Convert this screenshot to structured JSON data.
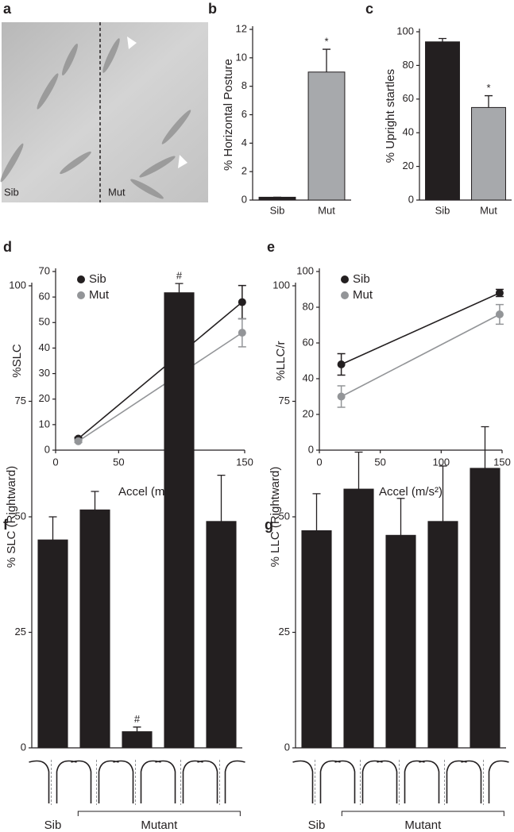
{
  "figure_a": {
    "panel": "a",
    "labels": [
      "Sib",
      "Mut"
    ]
  },
  "chart_data": [
    {
      "panel": "b",
      "type": "bar",
      "y_label": "% Horizontal Posture",
      "categories": [
        "Sib",
        "Mut"
      ],
      "values": [
        0.2,
        9.0
      ],
      "errors": [
        0,
        1.6
      ],
      "colors": [
        "#231f20",
        "#a7a9ac"
      ],
      "annotations": [
        {
          "index": 1,
          "text": "*"
        }
      ],
      "ylim": [
        0,
        12
      ],
      "yticks": [
        0,
        2,
        4,
        6,
        8,
        10,
        12
      ]
    },
    {
      "panel": "c",
      "type": "bar",
      "y_label": "% Upright startles",
      "categories": [
        "Sib",
        "Mut"
      ],
      "values": [
        94,
        55
      ],
      "errors": [
        2,
        7
      ],
      "colors": [
        "#231f20",
        "#a7a9ac"
      ],
      "annotations": [
        {
          "index": 1,
          "text": "*"
        }
      ],
      "ylim": [
        0,
        100
      ],
      "yticks": [
        0,
        20,
        40,
        60,
        80,
        100
      ]
    },
    {
      "panel": "d",
      "type": "line",
      "y_label": "%SLC",
      "x_label": "Accel (m/s²)",
      "x": [
        18,
        148
      ],
      "series": [
        {
          "name": "Sib",
          "color": "#231f20",
          "values": [
            4.5,
            58
          ],
          "errors": [
            0.5,
            6.5
          ]
        },
        {
          "name": "Mut",
          "color": "#939598",
          "values": [
            3.5,
            46
          ],
          "errors": [
            0.5,
            5.5
          ]
        }
      ],
      "xlim": [
        0,
        150
      ],
      "xticks": [
        0,
        50,
        100,
        150
      ],
      "ylim": [
        0,
        70
      ],
      "yticks": [
        0,
        10,
        20,
        30,
        40,
        50,
        60,
        70
      ],
      "legend": "upper left"
    },
    {
      "panel": "e",
      "type": "line",
      "y_label": "%LLC/r",
      "x_label": "Accel (m/s²)",
      "x": [
        18,
        148
      ],
      "series": [
        {
          "name": "Sib",
          "color": "#231f20",
          "values": [
            48,
            88
          ],
          "errors": [
            6,
            2
          ]
        },
        {
          "name": "Mut",
          "color": "#939598",
          "values": [
            30,
            76
          ],
          "errors": [
            6,
            5.5
          ]
        }
      ],
      "xlim": [
        0,
        150
      ],
      "xticks": [
        0,
        50,
        100,
        150
      ],
      "ylim": [
        0,
        100
      ],
      "yticks": [
        0,
        20,
        40,
        60,
        80,
        100
      ],
      "legend": "upper left"
    },
    {
      "panel": "f",
      "type": "bar",
      "y_label": "% SLC (Rightward)",
      "categories": [
        null,
        null,
        null,
        null,
        null
      ],
      "values": [
        45,
        51.5,
        3.5,
        98.5,
        49
      ],
      "errors": [
        5,
        4,
        1,
        2,
        10
      ],
      "color": "#231f20",
      "annotations": [
        {
          "index": 2,
          "text": "#"
        },
        {
          "index": 3,
          "text": "#"
        }
      ],
      "group_labels": [
        "Sib",
        "Mutant"
      ],
      "ylim": [
        0,
        100
      ],
      "yticks": [
        0,
        25,
        50,
        75,
        100
      ]
    },
    {
      "panel": "g",
      "type": "bar",
      "y_label": "% LLC (Rightward)",
      "categories": [
        null,
        null,
        null,
        null,
        null
      ],
      "values": [
        47,
        56,
        46,
        49,
        60.5
      ],
      "errors": [
        8,
        8,
        8,
        12,
        9
      ],
      "color": "#231f20",
      "group_labels": [
        "Sib",
        "Mutant"
      ],
      "ylim": [
        0,
        100
      ],
      "yticks": [
        0,
        25,
        50,
        75,
        100
      ]
    }
  ]
}
